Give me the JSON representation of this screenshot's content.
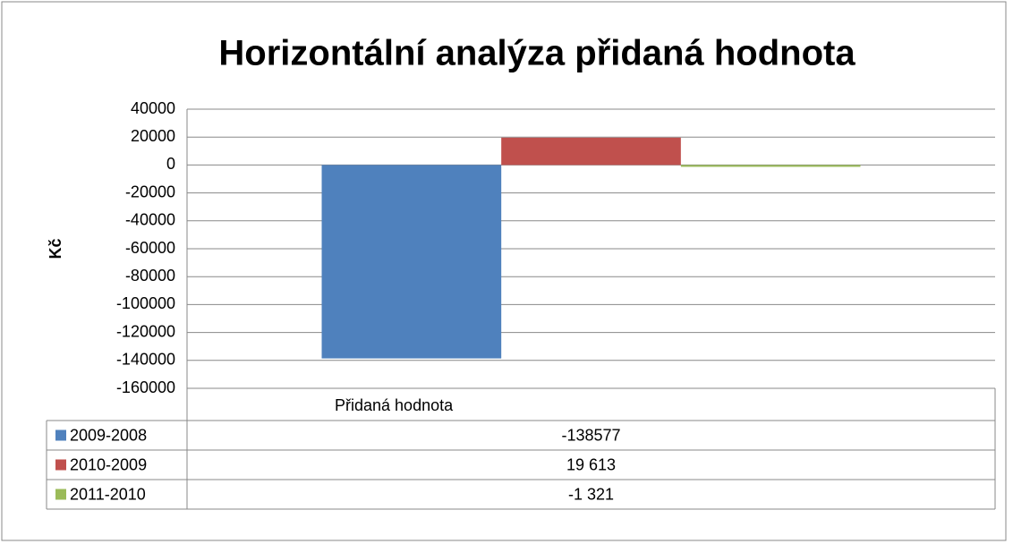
{
  "chart_data": {
    "type": "bar",
    "title": "Horizontální analýza přidaná hodnota",
    "y_label": "Kč",
    "categories": [
      "Přidaná hodnota"
    ],
    "series": [
      {
        "name": "2009-2008",
        "color": "#4f81bd",
        "values": [
          -138577
        ],
        "value_labels": [
          "-138577"
        ]
      },
      {
        "name": "2010-2009",
        "color": "#c0504d",
        "values": [
          19613
        ],
        "value_labels": [
          "19 613"
        ]
      },
      {
        "name": "2011-2010",
        "color": "#9bbb59",
        "values": [
          -1321
        ],
        "value_labels": [
          "-1 321"
        ]
      }
    ],
    "ylim": [
      -160000,
      40000
    ],
    "yticks": [
      -160000,
      -140000,
      -120000,
      -100000,
      -80000,
      -60000,
      -40000,
      -20000,
      0,
      20000,
      40000
    ],
    "grid": true,
    "legend": "data-table"
  }
}
